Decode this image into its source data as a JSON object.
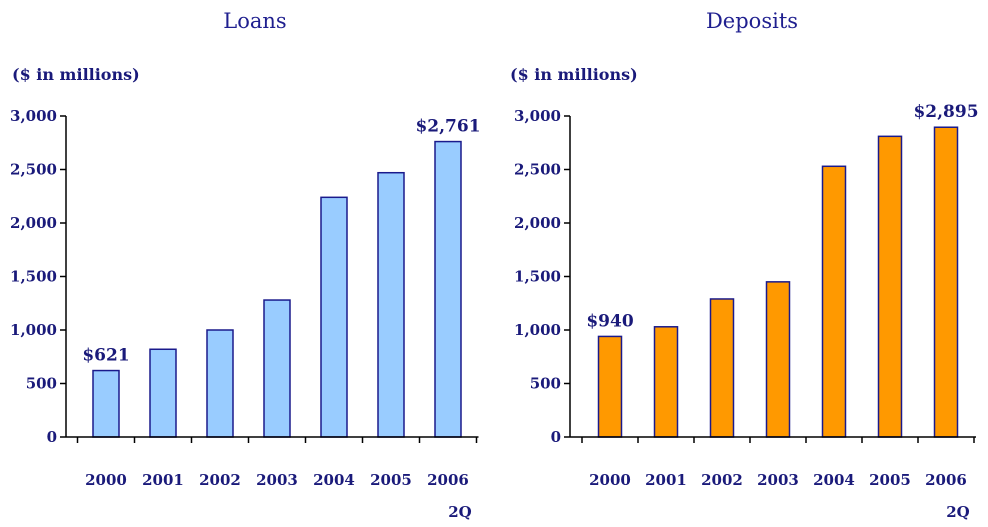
{
  "chart_data": [
    {
      "type": "bar",
      "title": "Loans",
      "unit_label": "($ in millions)",
      "categories": [
        "2000",
        "2001",
        "2002",
        "2003",
        "2004",
        "2005",
        "2006"
      ],
      "category_sublabels": [
        "",
        "",
        "",
        "",
        "",
        "",
        "2Q"
      ],
      "values": [
        621,
        820,
        1000,
        1280,
        2240,
        2470,
        2761
      ],
      "data_labels": [
        "$621",
        "",
        "",
        "",
        "",
        "",
        "$2,761"
      ],
      "ylim": [
        0,
        3000
      ],
      "yticks": [
        "0",
        "500",
        "1,000",
        "1,500",
        "2,000",
        "2,500",
        "3,000"
      ],
      "bar_color": "#99ccff",
      "bar_edge_color": "#1a1a8c",
      "grid": false,
      "legend": "none"
    },
    {
      "type": "bar",
      "title": "Deposits",
      "unit_label": "($ in millions)",
      "categories": [
        "2000",
        "2001",
        "2002",
        "2003",
        "2004",
        "2005",
        "2006"
      ],
      "category_sublabels": [
        "",
        "",
        "",
        "",
        "",
        "",
        "2Q"
      ],
      "values": [
        940,
        1030,
        1290,
        1450,
        2530,
        2810,
        2895
      ],
      "data_labels": [
        "$940",
        "",
        "",
        "",
        "",
        "",
        "$2,895"
      ],
      "ylim": [
        0,
        3000
      ],
      "yticks": [
        "0",
        "500",
        "1,000",
        "1,500",
        "2,000",
        "2,500",
        "3,000"
      ],
      "bar_color": "#ff9900",
      "bar_edge_color": "#1a1a8c",
      "grid": false,
      "legend": "none"
    }
  ]
}
